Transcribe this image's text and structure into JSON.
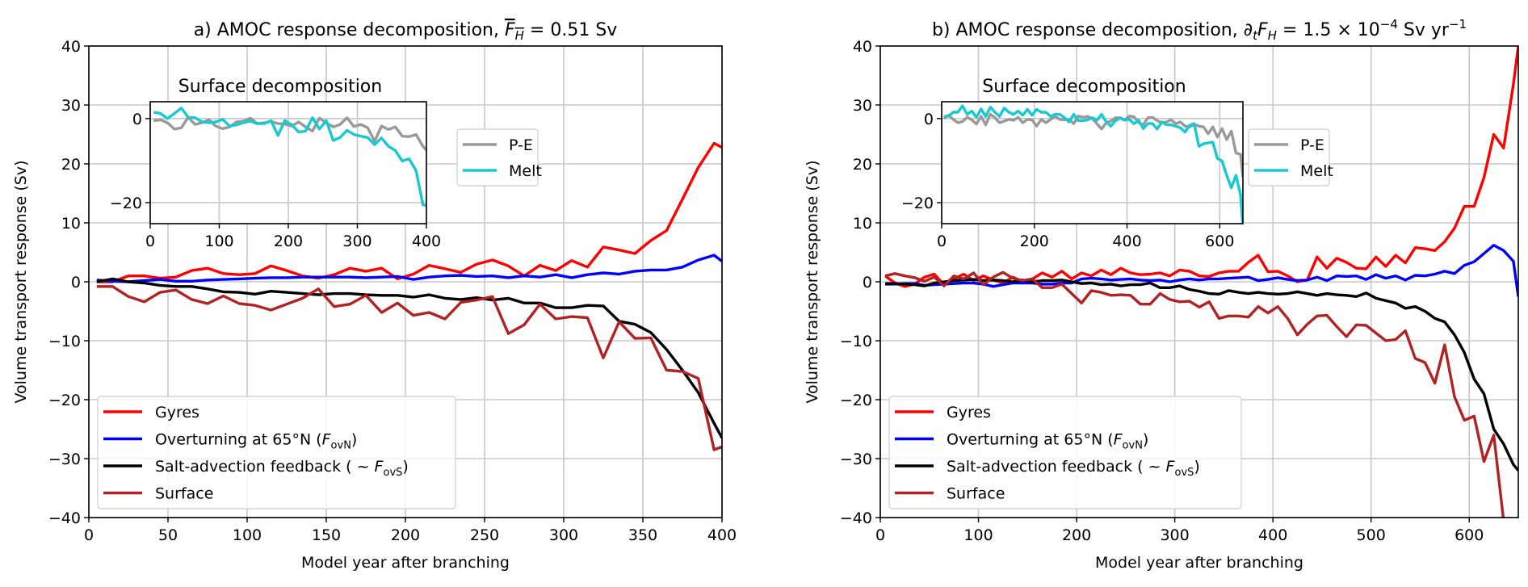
{
  "chart_data": [
    {
      "type": "line",
      "panel": "a",
      "title": "a) AMOC response decomposition, F̄_H = 0.51 Sv",
      "title_parts": {
        "prefix": "a) AMOC response decomposition, ",
        "symbol": "F",
        "subscript": "H",
        "suffix": " = 0.51 Sv",
        "overline": true
      },
      "xlabel": "Model year after branching",
      "ylabel": "Volume transport response (Sv)",
      "xlim": [
        0,
        400
      ],
      "ylim": [
        -40,
        40
      ],
      "xticks": [
        0,
        50,
        100,
        150,
        200,
        250,
        300,
        350,
        400
      ],
      "yticks": [
        -40,
        -30,
        -20,
        -10,
        0,
        10,
        20,
        30,
        40
      ],
      "grid": true,
      "legend_position": "lower-left",
      "x": [
        5,
        15,
        25,
        35,
        45,
        55,
        65,
        75,
        85,
        95,
        105,
        115,
        125,
        135,
        145,
        155,
        165,
        175,
        185,
        195,
        205,
        215,
        225,
        235,
        245,
        255,
        265,
        275,
        285,
        295,
        305,
        315,
        325,
        335,
        345,
        355,
        365,
        375,
        385,
        395,
        400
      ],
      "series": [
        {
          "name": "Gyres",
          "color": "#ff0000",
          "values": [
            0,
            0,
            1,
            1,
            0.6,
            0.8,
            1.9,
            2.3,
            1.4,
            1.2,
            1.4,
            2.7,
            1.9,
            1.0,
            0.6,
            1.2,
            2.3,
            1.8,
            2.3,
            0.5,
            1.3,
            2.8,
            2.2,
            1.6,
            3.0,
            3.7,
            2.7,
            1.0,
            2.8,
            1.9,
            3.6,
            2.5,
            5.9,
            5.4,
            4.8,
            7.0,
            8.7,
            14.0,
            19.4,
            23.5,
            22.8
          ]
        },
        {
          "name": "Overturning at 65°N (F_ovN)",
          "color": "#0000ff",
          "values": [
            0.3,
            0.1,
            0,
            0.2,
            0.4,
            0.1,
            0.1,
            0.3,
            0.4,
            0.5,
            0.6,
            0.7,
            0.7,
            0.8,
            0.8,
            0.8,
            0.8,
            0.7,
            0.8,
            0.9,
            0.4,
            0.8,
            1.0,
            1.1,
            0.9,
            1.0,
            0.7,
            1.0,
            0.8,
            1.2,
            0.7,
            1.2,
            1.5,
            1.3,
            1.8,
            2.0,
            2.0,
            2.5,
            3.7,
            4.5,
            3.5
          ]
        },
        {
          "name": "Salt-advection feedback (~F_ovS)",
          "color": "#000000",
          "values": [
            0,
            0.5,
            0,
            -0.2,
            -0.6,
            -0.8,
            -0.8,
            -1.2,
            -1.7,
            -1.8,
            -2.1,
            -1.6,
            -1.8,
            -2.0,
            -2.2,
            -2.0,
            -2.0,
            -2.2,
            -2.3,
            -2.3,
            -2.6,
            -2.2,
            -2.8,
            -3.0,
            -2.7,
            -3.1,
            -2.8,
            -3.6,
            -3.6,
            -4.4,
            -4.4,
            -4.0,
            -4.1,
            -6.7,
            -7.2,
            -8.6,
            -11.5,
            -15.0,
            -18.8,
            -24.0,
            -26.5
          ]
        },
        {
          "name": "Surface",
          "color": "#b22222",
          "values": [
            -0.8,
            -0.8,
            -2.5,
            -3.4,
            -1.8,
            -1.4,
            -3.0,
            -3.7,
            -2.4,
            -3.7,
            -4.0,
            -4.8,
            -3.8,
            -2.8,
            -1.2,
            -4.2,
            -3.8,
            -2.3,
            -5.2,
            -3.6,
            -5.7,
            -5.2,
            -6.3,
            -3.5,
            -3.1,
            -2.5,
            -8.8,
            -7.3,
            -3.8,
            -6.3,
            -5.9,
            -6.1,
            -12.9,
            -6.8,
            -9.6,
            -9.5,
            -15.0,
            -15.2,
            -16.4,
            -28.5,
            -28.0
          ]
        }
      ],
      "inset": {
        "title": "Surface decomposition",
        "xlim": [
          0,
          400
        ],
        "ylim": [
          -25,
          4
        ],
        "xticks": [
          0,
          100,
          200,
          300,
          400
        ],
        "yticks": [
          -20,
          0
        ],
        "grid": true,
        "legend_position": "right-outside",
        "x": [
          5,
          15,
          25,
          35,
          45,
          55,
          65,
          75,
          85,
          95,
          105,
          115,
          125,
          135,
          145,
          155,
          165,
          175,
          185,
          195,
          205,
          215,
          225,
          235,
          245,
          255,
          265,
          275,
          285,
          295,
          305,
          315,
          325,
          335,
          345,
          355,
          365,
          375,
          385,
          395,
          400
        ],
        "series": [
          {
            "name": "P-E",
            "color": "#999999",
            "values": [
              -0.5,
              -0.3,
              -1.0,
              -2.5,
              -2.2,
              0.3,
              -1.4,
              -1.0,
              -0.3,
              -1.8,
              -2.4,
              -2.0,
              -0.8,
              -0.6,
              0.1,
              -1.2,
              -1.0,
              -0.7,
              -1.2,
              -1.3,
              -1.8,
              -0.8,
              -2.0,
              -3.0,
              0.1,
              -1.0,
              -2.0,
              -1.4,
              0.2,
              -1.9,
              -1.4,
              -2.2,
              -5.4,
              -1.8,
              -2.6,
              -2.0,
              -4.2,
              -4.3,
              -3.8,
              -6.6,
              -7.5
            ]
          },
          {
            "name": "Melt",
            "color": "#17c9d0",
            "values": [
              1.5,
              1.2,
              0,
              1.2,
              2.5,
              0.3,
              0.2,
              -0.8,
              -1.0,
              -0.8,
              -0.2,
              -1.8,
              -1.5,
              -1.0,
              -0.6,
              -1.2,
              -1.2,
              -0.5,
              -4.0,
              -0.5,
              -1.5,
              -3.2,
              -3.0,
              0.2,
              -2.5,
              -0.5,
              -5.2,
              -4.5,
              -2.8,
              -3.8,
              -4.2,
              -4.5,
              -6.2,
              -4.6,
              -6.6,
              -7.6,
              -10.1,
              -9.6,
              -12.4,
              -20.5,
              -20.7
            ]
          }
        ]
      }
    },
    {
      "type": "line",
      "panel": "b",
      "title": "b) AMOC response decomposition, ∂_tF_H = 1.5 × 10^-4 Sv yr^-1",
      "title_parts": {
        "prefix": "b) AMOC response decomposition, ",
        "symbol": "∂",
        "sub1": "t",
        "symbol2": "F",
        "sub2": "H",
        "mid": " = 1.5 × 10",
        "exp1": "−4",
        "unit": " Sv yr",
        "exp2": "−1"
      },
      "xlabel": "Model year after branching",
      "ylabel": "Volume transport response (Sv)",
      "xlim": [
        0,
        650
      ],
      "ylim": [
        -40,
        40
      ],
      "xticks": [
        0,
        100,
        200,
        300,
        400,
        500,
        600
      ],
      "yticks": [
        -40,
        -30,
        -20,
        -10,
        0,
        10,
        20,
        30,
        40
      ],
      "grid": true,
      "legend_position": "lower-left",
      "x": [
        5,
        15,
        25,
        35,
        45,
        55,
        65,
        75,
        85,
        95,
        105,
        115,
        125,
        135,
        145,
        155,
        165,
        175,
        185,
        195,
        205,
        215,
        225,
        235,
        245,
        255,
        265,
        275,
        285,
        295,
        305,
        315,
        325,
        335,
        345,
        355,
        365,
        375,
        385,
        395,
        405,
        415,
        425,
        435,
        445,
        455,
        465,
        475,
        485,
        495,
        505,
        515,
        525,
        535,
        545,
        555,
        565,
        575,
        585,
        595,
        605,
        615,
        625,
        635,
        645,
        650
      ],
      "series": [
        {
          "name": "Gyres",
          "color": "#ff0000",
          "values": [
            1.0,
            -0.2,
            -0.8,
            -0.4,
            0.8,
            1.3,
            -0.5,
            0.5,
            1.3,
            0.2,
            1.0,
            0.3,
            -0.2,
            0.8,
            0,
            0.5,
            1.5,
            0.8,
            1.8,
            0.5,
            1.5,
            1.0,
            2.0,
            1.2,
            2.3,
            1.5,
            1.2,
            1.3,
            1.5,
            1.0,
            2.0,
            1.8,
            1.0,
            0.9,
            1.5,
            1.8,
            1.8,
            3.3,
            4.5,
            1.7,
            1.8,
            1.0,
            0,
            0.3,
            4.2,
            2.3,
            4.0,
            3.3,
            2.3,
            2.2,
            4.2,
            2.6,
            4.5,
            3.2,
            5.8,
            5.6,
            5.3,
            6.8,
            9.1,
            12.8,
            12.8,
            17.7,
            25.0,
            22.7,
            33.5,
            40.0
          ]
        },
        {
          "name": "Overturning at 65°N (F_ovN)",
          "color": "#0000ff",
          "values": [
            -0.4,
            -0.4,
            -0.3,
            -0.3,
            -0.6,
            -0.5,
            -0.4,
            -0.3,
            -0.2,
            -0.2,
            -0.4,
            -0.8,
            -0.5,
            -0.2,
            -0.2,
            -0.2,
            -0.4,
            -0.4,
            -0.2,
            -0.2,
            0.5,
            0.6,
            0.5,
            0.3,
            0.4,
            0.5,
            0.3,
            0.2,
            0.3,
            0,
            0.3,
            0.5,
            0.3,
            0.5,
            0.5,
            0.6,
            0.7,
            0.8,
            0.2,
            0.4,
            0.7,
            0.4,
            0.2,
            0.3,
            0.8,
            0.2,
            1.0,
            0.9,
            1.0,
            0.4,
            1.2,
            0.6,
            1.0,
            0.3,
            1.1,
            1.0,
            1.3,
            1.8,
            1.4,
            2.8,
            3.4,
            4.8,
            6.2,
            5.3,
            3.5,
            -2.5
          ]
        },
        {
          "name": "Salt-advection feedback (~F_ovS)",
          "color": "#000000",
          "values": [
            -0.3,
            -0.3,
            -0.4,
            -0.5,
            -0.7,
            -0.2,
            0,
            0.2,
            0.3,
            0.4,
            0.2,
            0.3,
            0.2,
            0,
            0.3,
            0,
            0.2,
            0.2,
            0.3,
            0,
            -0.3,
            -0.2,
            -0.5,
            -0.4,
            -0.7,
            -0.5,
            -0.5,
            -0.2,
            -1.0,
            -1.0,
            -0.7,
            -1.3,
            -1.6,
            -2.0,
            -2.1,
            -1.5,
            -1.8,
            -2.0,
            -1.8,
            -2.0,
            -2.1,
            -2.0,
            -1.7,
            -2.0,
            -2.3,
            -2.0,
            -2.2,
            -2.3,
            -2.5,
            -1.9,
            -2.8,
            -3.2,
            -3.6,
            -4.5,
            -4.2,
            -5.0,
            -6.2,
            -6.8,
            -9.0,
            -12.0,
            -16.5,
            -19.0,
            -25.0,
            -27.5,
            -31.0,
            -32.0
          ]
        },
        {
          "name": "Surface",
          "color": "#b22222",
          "values": [
            1.0,
            1.4,
            1.0,
            0.7,
            0.1,
            0.8,
            -0.7,
            1.0,
            0.5,
            1.5,
            -0.5,
            0.8,
            1.6,
            0.6,
            0.2,
            0.5,
            -1.0,
            -1.0,
            -0.4,
            -2.0,
            -3.6,
            -1.5,
            -1.8,
            -2.3,
            -2.2,
            -2.3,
            -3.8,
            -3.8,
            -2.0,
            -3.0,
            -3.4,
            -3.3,
            -4.3,
            -3.4,
            -6.2,
            -5.8,
            -5.8,
            -6.0,
            -4.2,
            -5.3,
            -4.2,
            -6.2,
            -9.0,
            -7.2,
            -5.8,
            -5.7,
            -7.6,
            -9.3,
            -7.3,
            -7.4,
            -8.7,
            -10.0,
            -9.8,
            -8.3,
            -13.0,
            -13.7,
            -17.2,
            -10.7,
            -19.5,
            -23.5,
            -22.8,
            -30.5,
            -26.0,
            -40.5,
            -42.0,
            -42.0
          ]
        }
      ],
      "inset": {
        "title": "Surface decomposition",
        "xlim": [
          0,
          650
        ],
        "ylim": [
          -25,
          4
        ],
        "xticks": [
          0,
          200,
          400,
          600
        ],
        "yticks": [
          -20,
          0
        ],
        "grid": true,
        "legend_position": "right-outside",
        "x": [
          5,
          15,
          25,
          35,
          45,
          55,
          65,
          75,
          85,
          95,
          105,
          115,
          125,
          135,
          145,
          155,
          165,
          175,
          185,
          195,
          205,
          215,
          225,
          235,
          245,
          255,
          265,
          275,
          285,
          295,
          305,
          315,
          325,
          335,
          345,
          355,
          365,
          375,
          385,
          395,
          405,
          415,
          425,
          435,
          445,
          455,
          465,
          475,
          485,
          495,
          505,
          515,
          525,
          535,
          545,
          555,
          565,
          575,
          585,
          595,
          605,
          615,
          625,
          635,
          645,
          650
        ],
        "series": [
          {
            "name": "P-E",
            "color": "#999999",
            "values": [
              0,
              0.8,
              -0.2,
              -1.0,
              -0.7,
              0.3,
              -0.3,
              -1.3,
              0.5,
              -1.5,
              1.0,
              0.2,
              -1.0,
              -0.6,
              -0.2,
              -0.4,
              0.3,
              -1.0,
              -0.2,
              -0.3,
              -1.8,
              -0.2,
              -1.0,
              -0.2,
              0.5,
              -0.2,
              -0.3,
              -0.2,
              -1.2,
              0.6,
              0.3,
              0.5,
              0,
              -1.2,
              -2.5,
              -1.0,
              -0.6,
              0.2,
              0.2,
              -0.3,
              0.6,
              0.4,
              -1.0,
              -1.5,
              0.2,
              0.3,
              -0.5,
              -1.0,
              -0.8,
              -0.3,
              -1.2,
              -0.8,
              -1.8,
              -2.0,
              -1.4,
              -1.8,
              -2.0,
              -3.6,
              -2.0,
              -4.4,
              -2.4,
              -5.0,
              -3.0,
              -8.2,
              -8.5,
              -14.0
            ]
          },
          {
            "name": "Melt",
            "color": "#17c9d0",
            "values": [
              0.5,
              0.6,
              1.5,
              1.5,
              3.0,
              1.0,
              1.8,
              0.3,
              2.3,
              0.5,
              2.7,
              1.5,
              0.5,
              2.5,
              1.5,
              1.0,
              1.8,
              0.8,
              2.2,
              0.8,
              2.2,
              1.5,
              1.5,
              0.5,
              1.0,
              1.0,
              0.2,
              -0.8,
              1.0,
              -0.5,
              -0.5,
              -0.3,
              0.2,
              -0.4,
              1.0,
              -0.8,
              -1.8,
              -0.5,
              0.1,
              -0.4,
              -0.2,
              -1.2,
              -0.4,
              -2.4,
              -1.2,
              -1.2,
              -2.5,
              -0.8,
              -1.5,
              -1.5,
              -1.8,
              -2.2,
              -3.2,
              -1.6,
              -1.2,
              -6.6,
              -6.0,
              -5.8,
              -5.6,
              -9.5,
              -10.1,
              -13.5,
              -16.5,
              -13.5,
              -18.2,
              -26.0
            ]
          }
        ]
      }
    }
  ]
}
